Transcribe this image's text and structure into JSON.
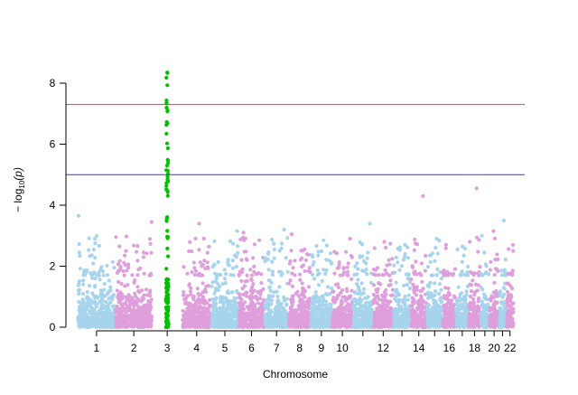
{
  "chart_data": {
    "type": "scatter",
    "title": "",
    "xlabel": "Chromosome",
    "ylabel": "−log10(p)",
    "ylabel_parts": {
      "prefix": "− log",
      "subscript": "10",
      "suffix": "(p)"
    },
    "ylim": [
      0,
      8.5
    ],
    "yticks": [
      0,
      2,
      4,
      6,
      8
    ],
    "grid": false,
    "legend": "none",
    "colors": {
      "odd": "#a6d4ec",
      "even": "#de9fdc",
      "highlight": "#00c000",
      "genome_wide": "#ef3b2c",
      "suggestive": "#3c3ccc"
    },
    "thresholds": [
      {
        "value": 7.3,
        "color": "#ef3b2c"
      },
      {
        "value": 5.0,
        "color": "#3c3ccc"
      }
    ],
    "tick_labels": [
      "1",
      "2",
      "3",
      "4",
      "5",
      "6",
      "7",
      "8",
      "9",
      "10",
      "12",
      "14",
      "16",
      "18",
      "20",
      "22"
    ],
    "chromosomes": [
      {
        "chr": 1,
        "length": 249,
        "peak": 3.65
      },
      {
        "chr": 2,
        "length": 243,
        "peak": 3.45
      },
      {
        "chr": 3,
        "length": 198,
        "peak": 8.35,
        "highlight": true
      },
      {
        "chr": 4,
        "length": 191,
        "peak": 3.4
      },
      {
        "chr": 5,
        "length": 181,
        "peak": 3.15
      },
      {
        "chr": 6,
        "length": 171,
        "peak": 3.1
      },
      {
        "chr": 7,
        "length": 159,
        "peak": 3.2
      },
      {
        "chr": 8,
        "length": 146,
        "peak": 3.05
      },
      {
        "chr": 9,
        "length": 141,
        "peak": 2.85
      },
      {
        "chr": 10,
        "length": 136,
        "peak": 2.9
      },
      {
        "chr": 11,
        "length": 135,
        "peak": 3.4
      },
      {
        "chr": 12,
        "length": 133,
        "peak": 2.8
      },
      {
        "chr": 13,
        "length": 115,
        "peak": 2.7
      },
      {
        "chr": 14,
        "length": 107,
        "peak": 4.3
      },
      {
        "chr": 15,
        "length": 102,
        "peak": 2.9
      },
      {
        "chr": 16,
        "length": 90,
        "peak": 2.7
      },
      {
        "chr": 17,
        "length": 83,
        "peak": 2.65
      },
      {
        "chr": 18,
        "length": 78,
        "peak": 4.55
      },
      {
        "chr": 19,
        "length": 59,
        "peak": 3.0
      },
      {
        "chr": 20,
        "length": 63,
        "peak": 3.15
      },
      {
        "chr": 21,
        "length": 48,
        "peak": 3.5
      },
      {
        "chr": 22,
        "length": 51,
        "peak": 2.7
      }
    ]
  }
}
